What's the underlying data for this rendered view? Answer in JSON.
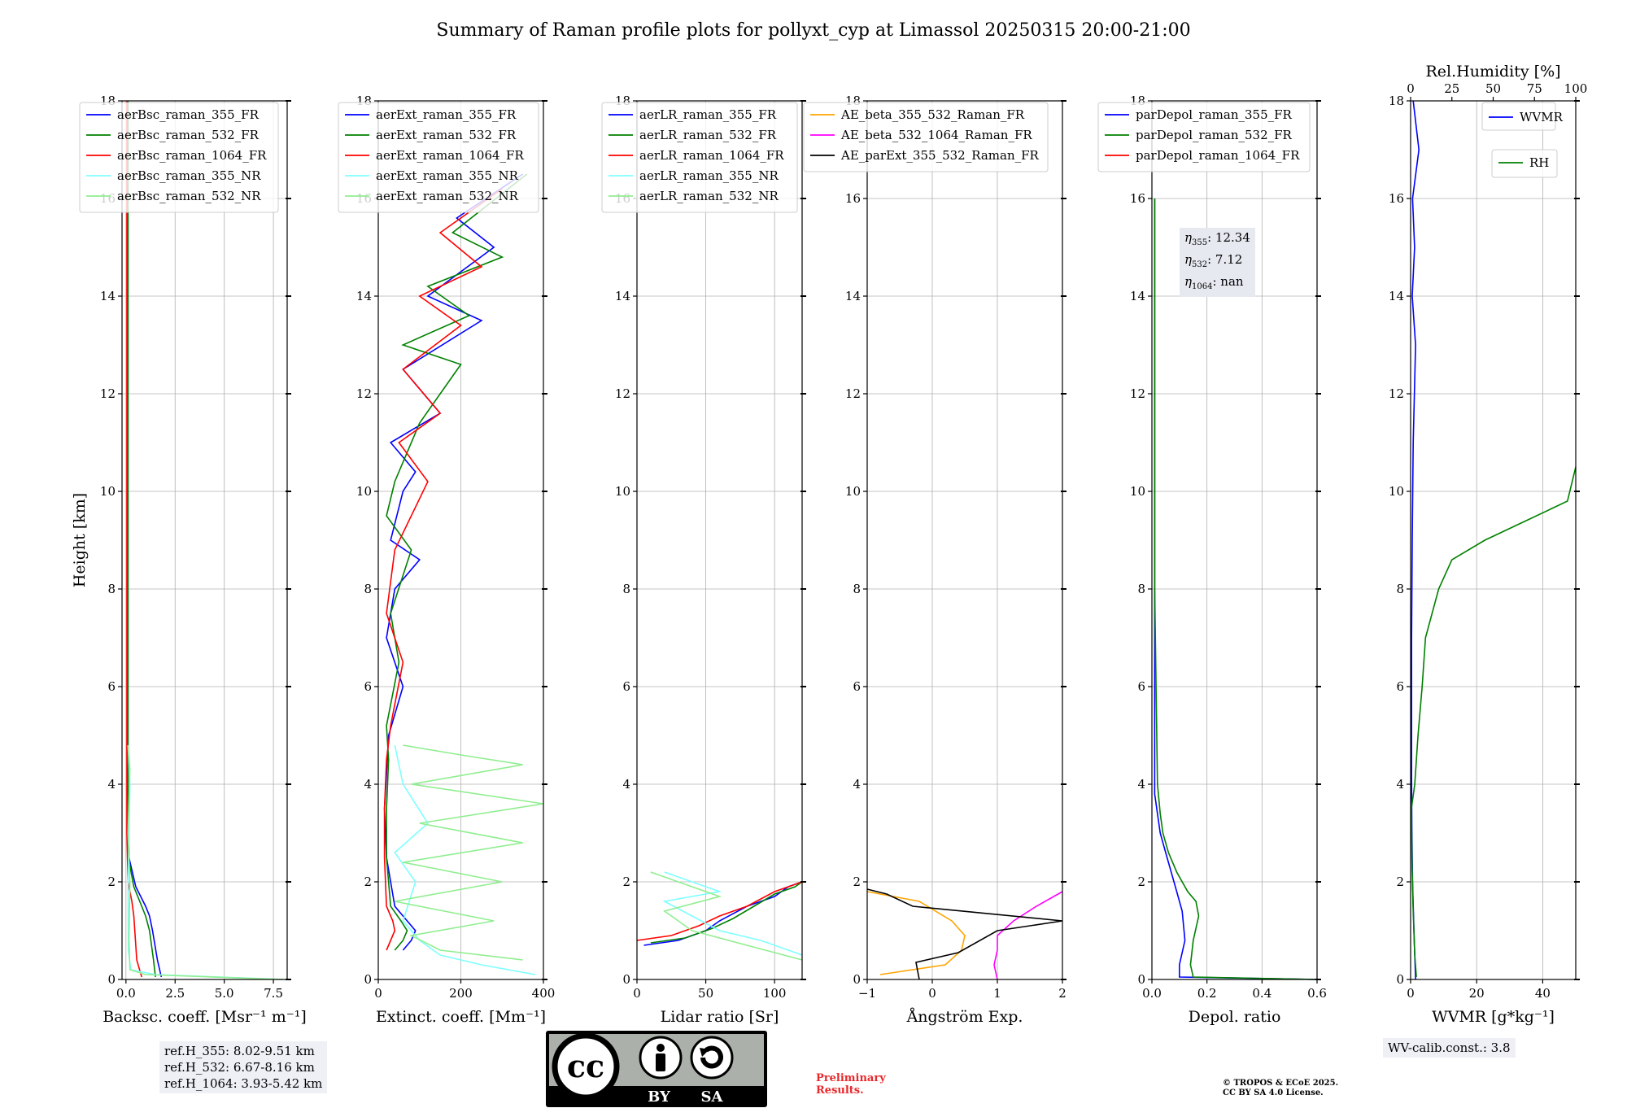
{
  "title": "Summary of Raman profile plots for pollyxt_cyp at Limassol 20250315 20:00-21:00",
  "colors": {
    "blue": "#0000ff",
    "green": "#008000",
    "red": "#ff0000",
    "cyan": "#7fffff",
    "lightgreen": "#90ee90",
    "orange": "#ffa500",
    "magenta": "#ff00ff",
    "black": "#000000"
  },
  "refbox": [
    "ref.H_355: 8.02-9.51 km",
    "ref.H_532: 6.67-8.16 km",
    "ref.H_1064: 3.93-5.42 km"
  ],
  "eta_box": {
    "eta355": "12.34",
    "eta532": "7.12",
    "eta1064": "nan"
  },
  "wv_calib": "WV-calib.const.: 3.8",
  "preliminary": [
    "Preliminary",
    "Results."
  ],
  "copyright": [
    "© TROPOS & ECoE 2025.",
    "CC BY SA 4.0 License."
  ],
  "license_logo": {
    "cc": "cc",
    "by": "BY",
    "sa": "SA"
  },
  "chart_data": [
    {
      "type": "line",
      "xlabel": "Backsc. coeff. [Msr⁻¹ m⁻¹]",
      "ylabel": "Height [km]",
      "xlim": [
        -0.2,
        8.2
      ],
      "ylim": [
        0,
        18
      ],
      "xticks": [
        0,
        2.5,
        5,
        7.5
      ],
      "xtick_labels": [
        "0.0",
        "2.5",
        "5.0",
        "7.5"
      ],
      "yticks": [
        0,
        2,
        4,
        6,
        8,
        10,
        12,
        14,
        16,
        18
      ],
      "legend": [
        "aerBsc_raman_355_FR",
        "aerBsc_raman_532_FR",
        "aerBsc_raman_1064_FR",
        "aerBsc_raman_355_NR",
        "aerBsc_raman_532_NR"
      ],
      "legend_colors": [
        "blue",
        "green",
        "red",
        "cyan",
        "lightgreen"
      ],
      "legend_placement": "top-right",
      "series": [
        {
          "name": "aerBsc_raman_355_FR",
          "color": "blue",
          "x": [
            1.8,
            1.6,
            1.35,
            1.2,
            1.0,
            0.5,
            0.15,
            0.1,
            0.1,
            0.1,
            0.1,
            0.1
          ],
          "y": [
            0.05,
            0.4,
            1.0,
            1.3,
            1.5,
            1.9,
            2.5,
            4,
            8,
            10,
            14,
            18
          ]
        },
        {
          "name": "aerBsc_raman_532_FR",
          "color": "green",
          "x": [
            1.5,
            1.4,
            1.2,
            1.0,
            0.8,
            0.4,
            0.12,
            0.1,
            0.1,
            0.1,
            0.1,
            0.1
          ],
          "y": [
            0.05,
            0.4,
            1.0,
            1.3,
            1.5,
            1.9,
            2.5,
            4,
            8,
            10,
            14,
            18
          ]
        },
        {
          "name": "aerBsc_raman_1064_FR",
          "color": "red",
          "x": [
            0.8,
            0.55,
            0.45,
            0.4,
            0.3,
            0.1,
            0.05,
            0.05,
            0.05
          ],
          "y": [
            0.05,
            0.4,
            1.0,
            1.3,
            1.6,
            2.0,
            3,
            10,
            18
          ]
        },
        {
          "name": "aerBsc_raman_355_NR",
          "color": "cyan",
          "x": [
            8.0,
            1.5,
            0.25,
            0.12,
            0.1,
            0.2,
            0.1
          ],
          "y": [
            0.0,
            0.1,
            0.2,
            0.6,
            2,
            4,
            4.8
          ]
        },
        {
          "name": "aerBsc_raman_532_NR",
          "color": "lightgreen",
          "x": [
            8.0,
            1.0,
            0.2,
            0.15,
            0.2,
            0.1,
            0.2,
            0.1
          ],
          "y": [
            0.0,
            0.1,
            0.2,
            0.8,
            2,
            3,
            4.3,
            4.8
          ]
        }
      ]
    },
    {
      "type": "line",
      "xlabel": "Extinct. coeff. [Mm⁻¹]",
      "xlim": [
        0,
        400
      ],
      "ylim": [
        0,
        18
      ],
      "xticks": [
        0,
        200,
        400
      ],
      "xtick_labels": [
        "0",
        "200",
        "400"
      ],
      "yticks": [
        0,
        2,
        4,
        6,
        8,
        10,
        12,
        14,
        16,
        18
      ],
      "legend": [
        "aerExt_raman_355_FR",
        "aerExt_raman_532_FR",
        "aerExt_raman_1064_FR",
        "aerExt_raman_355_NR",
        "aerExt_raman_532_NR"
      ],
      "legend_colors": [
        "blue",
        "green",
        "red",
        "cyan",
        "lightgreen"
      ],
      "legend_placement": "top-right",
      "series": [
        {
          "name": "aerExt_raman_355_FR",
          "color": "blue",
          "x": [
            60,
            80,
            90,
            70,
            40,
            20,
            15,
            20,
            25,
            60,
            20,
            40,
            100,
            30,
            60,
            90,
            30,
            150,
            60,
            250,
            120,
            280,
            190,
            350
          ],
          "y": [
            0.6,
            0.8,
            1.0,
            1.2,
            1.5,
            2.5,
            3.5,
            4.2,
            5,
            6,
            7,
            8,
            8.6,
            9,
            10,
            10.4,
            11,
            11.6,
            12.5,
            13.5,
            14,
            15.0,
            15.6,
            16.5
          ]
        },
        {
          "name": "aerExt_raman_532_FR",
          "color": "green",
          "x": [
            40,
            60,
            70,
            55,
            30,
            20,
            20,
            25,
            20,
            50,
            30,
            80,
            20,
            40,
            100,
            200,
            60,
            220,
            120,
            300,
            180,
            360
          ],
          "y": [
            0.6,
            0.8,
            1.0,
            1.2,
            1.5,
            2.5,
            3.5,
            4.5,
            5.2,
            6.5,
            7.5,
            8.8,
            9.5,
            10.2,
            11.4,
            12.6,
            13,
            13.6,
            14.2,
            14.8,
            15.3,
            16.5
          ]
        },
        {
          "name": "aerExt_raman_1064_FR",
          "color": "red",
          "x": [
            20,
            30,
            40,
            35,
            20,
            15,
            15,
            20,
            30,
            60,
            20,
            40,
            120,
            50,
            150,
            60,
            200,
            100,
            250,
            150,
            300
          ],
          "y": [
            0.6,
            0.8,
            1.0,
            1.2,
            1.5,
            2.5,
            3.5,
            4.5,
            5.2,
            6.5,
            7.5,
            8.8,
            10.2,
            11,
            11.6,
            12.5,
            13.4,
            14,
            14.6,
            15.3,
            16.2
          ]
        },
        {
          "name": "aerExt_raman_355_NR",
          "color": "cyan",
          "x": [
            380,
            250,
            150,
            100,
            60,
            90,
            40,
            120,
            60,
            40
          ],
          "y": [
            0.1,
            0.3,
            0.5,
            0.8,
            1.2,
            2.0,
            2.6,
            3.2,
            4,
            4.8
          ]
        },
        {
          "name": "aerExt_raman_532_NR",
          "color": "lightgreen",
          "x": [
            350,
            150,
            80,
            280,
            40,
            300,
            60,
            350,
            100,
            400,
            80,
            350,
            200,
            60
          ],
          "y": [
            0.4,
            0.6,
            0.9,
            1.2,
            1.6,
            2.0,
            2.4,
            2.8,
            3.2,
            3.6,
            4.0,
            4.4,
            4.6,
            4.8
          ]
        }
      ]
    },
    {
      "type": "line",
      "xlabel": "Lidar ratio [Sr]",
      "xlim": [
        0,
        120
      ],
      "ylim": [
        0,
        18
      ],
      "xticks": [
        0,
        50,
        100
      ],
      "xtick_labels": [
        "0",
        "50",
        "100"
      ],
      "yticks": [
        0,
        2,
        4,
        6,
        8,
        10,
        12,
        14,
        16,
        18
      ],
      "legend": [
        "aerLR_raman_355_FR",
        "aerLR_raman_532_FR",
        "aerLR_raman_1064_FR",
        "aerLR_raman_355_NR",
        "aerLR_raman_532_NR"
      ],
      "legend_colors": [
        "blue",
        "green",
        "red",
        "cyan",
        "lightgreen"
      ],
      "legend_placement": "top-left",
      "series": [
        {
          "name": "aerLR_raman_355_FR",
          "color": "blue",
          "x": [
            5,
            30,
            50,
            60,
            80,
            100,
            110,
            120
          ],
          "y": [
            0.7,
            0.8,
            1.0,
            1.2,
            1.5,
            1.7,
            1.9,
            2.0
          ]
        },
        {
          "name": "aerLR_raman_532_FR",
          "color": "green",
          "x": [
            10,
            35,
            55,
            70,
            85,
            100,
            115,
            120
          ],
          "y": [
            0.75,
            0.85,
            1.05,
            1.25,
            1.5,
            1.75,
            1.9,
            2.0
          ]
        },
        {
          "name": "aerLR_raman_1064_FR",
          "color": "red",
          "x": [
            0,
            25,
            45,
            60,
            80,
            100,
            120
          ],
          "y": [
            0.8,
            0.9,
            1.1,
            1.3,
            1.5,
            1.8,
            2.0
          ]
        },
        {
          "name": "aerLR_raman_355_NR",
          "color": "cyan",
          "x": [
            120,
            90,
            60,
            40,
            20,
            60,
            20
          ],
          "y": [
            0.5,
            0.8,
            1.0,
            1.3,
            1.6,
            1.8,
            2.2
          ]
        },
        {
          "name": "aerLR_raman_532_NR",
          "color": "lightgreen",
          "x": [
            120,
            80,
            40,
            20,
            60,
            10
          ],
          "y": [
            0.4,
            0.7,
            1.0,
            1.4,
            1.7,
            2.2
          ]
        }
      ]
    },
    {
      "type": "line",
      "xlabel": "Ångström Exp.",
      "xlim": [
        -1,
        2
      ],
      "ylim": [
        0,
        18
      ],
      "xticks": [
        -1,
        0,
        1,
        2
      ],
      "xtick_labels": [
        "−1",
        "0",
        "1",
        "2"
      ],
      "yticks": [
        0,
        2,
        4,
        6,
        8,
        10,
        12,
        14,
        16,
        18
      ],
      "legend": [
        "AE_beta_355_532_Raman_FR",
        "AE_beta_532_1064_Raman_FR",
        "AE_parExt_355_532_Raman_FR"
      ],
      "legend_colors": [
        "orange",
        "magenta",
        "black"
      ],
      "legend_placement": "top-left",
      "series": [
        {
          "name": "AE_beta_355_532_Raman_FR",
          "color": "orange",
          "x": [
            -0.8,
            0.2,
            0.45,
            0.5,
            0.3,
            -0.2,
            -1.0
          ],
          "y": [
            0.1,
            0.3,
            0.6,
            0.9,
            1.2,
            1.6,
            1.8
          ]
        },
        {
          "name": "AE_beta_532_1064_Raman_FR",
          "color": "magenta",
          "x": [
            1.0,
            0.95,
            1.0,
            1.0,
            1.25,
            1.6,
            2.0
          ],
          "y": [
            0.0,
            0.3,
            0.6,
            0.9,
            1.2,
            1.5,
            1.8
          ]
        },
        {
          "name": "AE_parExt_355_532_Raman_FR",
          "color": "black",
          "x": [
            -0.2,
            -0.25,
            0.4,
            1.0,
            2.0,
            -0.3,
            -0.7,
            -1.0
          ],
          "y": [
            0.0,
            0.35,
            0.55,
            1.0,
            1.2,
            1.5,
            1.75,
            1.85
          ]
        }
      ]
    },
    {
      "type": "line",
      "xlabel": "Depol. ratio",
      "xlim": [
        0,
        0.6
      ],
      "ylim": [
        0,
        18
      ],
      "xticks": [
        0,
        0.2,
        0.4,
        0.6
      ],
      "xtick_labels": [
        "0.0",
        "0.2",
        "0.4",
        "0.6"
      ],
      "yticks": [
        0,
        2,
        4,
        6,
        8,
        10,
        12,
        14,
        16,
        18
      ],
      "legend": [
        "parDepol_raman_355_FR",
        "parDepol_raman_532_FR",
        "parDepol_raman_1064_FR"
      ],
      "legend_colors": [
        "blue",
        "green",
        "red"
      ],
      "legend_placement": "top-right",
      "series": [
        {
          "name": "parDepol_raman_355_FR",
          "color": "blue",
          "x": [
            0.6,
            0.1,
            0.1,
            0.12,
            0.11,
            0.09,
            0.07,
            0.05,
            0.03,
            0.02,
            0.01,
            0.01,
            0.01
          ],
          "y": [
            0.0,
            0.05,
            0.3,
            0.8,
            1.4,
            1.8,
            2.2,
            2.6,
            3.0,
            3.4,
            3.8,
            8,
            16
          ]
        },
        {
          "name": "parDepol_raman_532_FR",
          "color": "green",
          "x": [
            0.6,
            0.15,
            0.14,
            0.15,
            0.17,
            0.16,
            0.13,
            0.09,
            0.06,
            0.04,
            0.03,
            0.02,
            0.01,
            0.01
          ],
          "y": [
            0.0,
            0.05,
            0.3,
            0.8,
            1.3,
            1.6,
            1.8,
            2.2,
            2.6,
            3.0,
            3.4,
            4.0,
            8,
            16
          ]
        }
      ]
    },
    {
      "type": "line",
      "xlabel": "WVMR [g*kg⁻¹]",
      "x2label": "Rel.Humidity [%]",
      "xlim": [
        0,
        50
      ],
      "x2lim": [
        0,
        100
      ],
      "ylim": [
        0,
        18
      ],
      "xticks": [
        0,
        20,
        40
      ],
      "xtick_labels": [
        "0",
        "20",
        "40"
      ],
      "x2ticks": [
        0,
        25,
        50,
        75,
        100
      ],
      "x2tick_labels": [
        "0",
        "25",
        "50",
        "75",
        "100"
      ],
      "yticks": [
        0,
        2,
        4,
        6,
        8,
        10,
        12,
        14,
        16,
        18
      ],
      "legend": [
        "WVMR",
        "RH"
      ],
      "legend_colors": [
        "blue",
        "green"
      ],
      "legend_placement": "top-right",
      "series": [
        {
          "name": "WVMR",
          "color": "blue",
          "axis": "bottom",
          "x": [
            1.5,
            1.0,
            0.6,
            0.4,
            0.3,
            0.3,
            0.5,
            0.8,
            1.5,
            0.5,
            1.2,
            0.6,
            2.5,
            0.8
          ],
          "y": [
            0.0,
            1.0,
            2.0,
            3.0,
            4.0,
            7.0,
            9.0,
            11.0,
            13.0,
            14.0,
            15.0,
            16.0,
            17.0,
            18.0
          ]
        },
        {
          "name": "RH",
          "color": "green",
          "axis": "top",
          "x": [
            3.5,
            2.5,
            1.5,
            0.8,
            0.5,
            2.5,
            4.5,
            7,
            9,
            13,
            17,
            25,
            45,
            70,
            95,
            100
          ],
          "y": [
            0.05,
            0.5,
            1.5,
            2.5,
            3.5,
            4.0,
            5.0,
            6.0,
            7.0,
            7.5,
            8.0,
            8.6,
            9.0,
            9.4,
            9.8,
            10.5
          ]
        }
      ]
    }
  ]
}
